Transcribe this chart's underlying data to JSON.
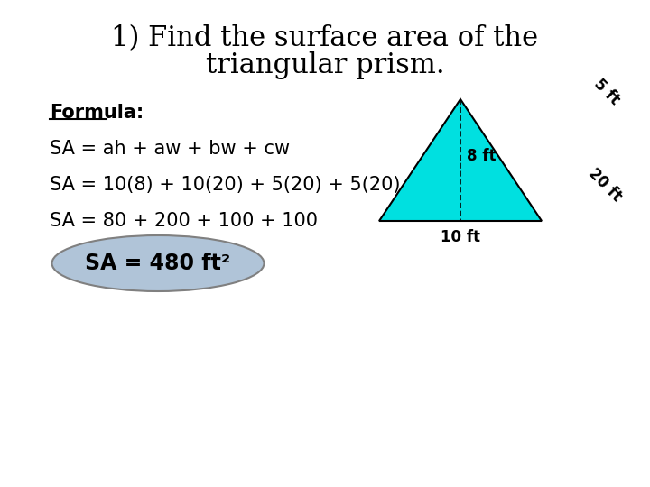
{
  "title_line1": "1) Find the surface area of the",
  "title_line2": "triangular prism.",
  "formula_label": "Formula:",
  "line1": "SA = ah + aw + bw + cw",
  "line2": "SA = 10(8) + 10(20) + 5(20) + 5(20)",
  "line3": "SA = 80 + 200 + 100 + 100",
  "answer": "SA = 480 ft²",
  "label_8ft": "8 ft",
  "label_10ft": "10 ft",
  "label_5ft": "5 ft",
  "label_20ft": "20 ft",
  "triangle_fill": "#00e0e0",
  "triangle_edge": "#000000",
  "answer_ellipse_fill": "#b0c4d8",
  "answer_ellipse_edge": "#808080",
  "background": "#ffffff",
  "title_fontsize": 22,
  "text_fontsize": 15,
  "formula_fontsize": 15,
  "answer_fontsize": 17,
  "label_fontsize": 12
}
